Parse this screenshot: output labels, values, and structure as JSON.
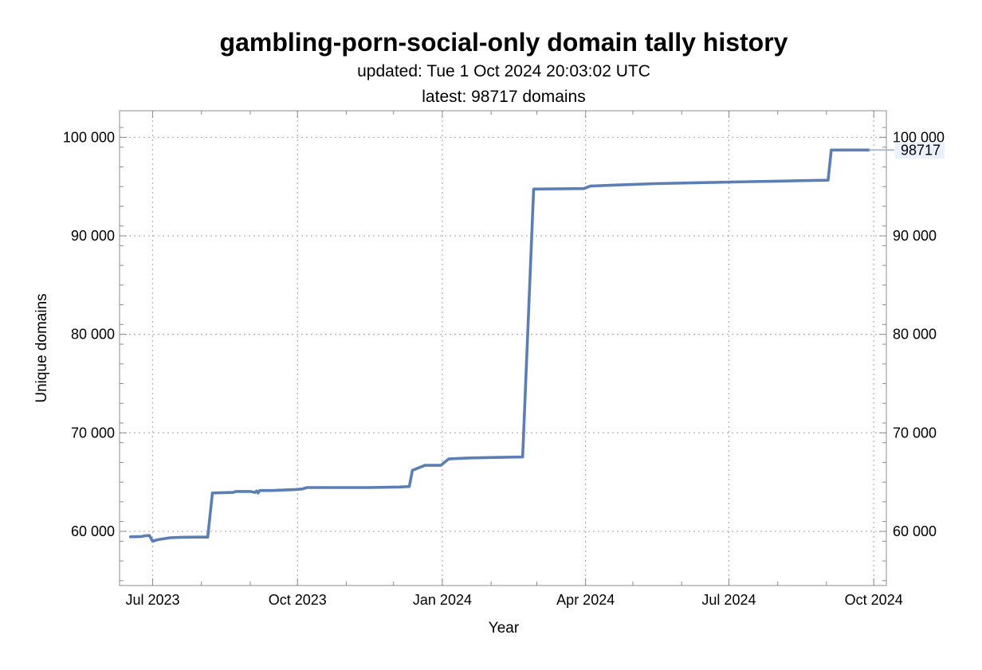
{
  "chart_data": {
    "type": "line",
    "title": "gambling-porn-social-only domain tally history",
    "subtitle_lines": [
      "updated: Tue 1 Oct 2024 20:03:02 UTC",
      "latest: 98717 domains"
    ],
    "xlabel": "Year",
    "ylabel": "Unique domains",
    "xlim": [
      "2023-06-10",
      "2024-10-09"
    ],
    "ylim": [
      54500,
      102700
    ],
    "x_ticks": [
      {
        "date": "2023-07-01",
        "label": "Jul 2023"
      },
      {
        "date": "2023-10-01",
        "label": "Oct 2023"
      },
      {
        "date": "2024-01-01",
        "label": "Jan 2024"
      },
      {
        "date": "2024-04-01",
        "label": "Apr 2024"
      },
      {
        "date": "2024-07-01",
        "label": "Jul 2024"
      },
      {
        "date": "2024-10-01",
        "label": "Oct 2024"
      }
    ],
    "x_minor_ticks": [
      "2023-06-01",
      "2023-08-01",
      "2023-09-01",
      "2023-11-01",
      "2023-12-01",
      "2024-02-01",
      "2024-03-01",
      "2024-05-01",
      "2024-06-01",
      "2024-08-01",
      "2024-09-01"
    ],
    "y_ticks": [
      {
        "value": 60000,
        "label": "60 000"
      },
      {
        "value": 70000,
        "label": "70 000"
      },
      {
        "value": 80000,
        "label": "80 000"
      },
      {
        "value": 90000,
        "label": "90 000"
      },
      {
        "value": 100000,
        "label": "100 000"
      }
    ],
    "grid": true,
    "series": [
      {
        "color": "#5b7fb5",
        "points": [
          [
            "2023-06-17",
            59450
          ],
          [
            "2023-06-24",
            59480
          ],
          [
            "2023-06-26",
            59550
          ],
          [
            "2023-06-29",
            59580
          ],
          [
            "2023-07-01",
            59000
          ],
          [
            "2023-07-04",
            59150
          ],
          [
            "2023-07-12",
            59350
          ],
          [
            "2023-07-19",
            59400
          ],
          [
            "2023-07-30",
            59420
          ],
          [
            "2023-08-05",
            59420
          ],
          [
            "2023-08-08",
            63900
          ],
          [
            "2023-08-21",
            63950
          ],
          [
            "2023-08-23",
            64050
          ],
          [
            "2023-09-01",
            64050
          ],
          [
            "2023-09-04",
            63950
          ],
          [
            "2023-09-05",
            64100
          ],
          [
            "2023-09-06",
            63900
          ],
          [
            "2023-09-07",
            64150
          ],
          [
            "2023-09-15",
            64150
          ],
          [
            "2023-09-30",
            64250
          ],
          [
            "2023-10-04",
            64300
          ],
          [
            "2023-10-07",
            64450
          ],
          [
            "2023-11-15",
            64450
          ],
          [
            "2023-12-05",
            64500
          ],
          [
            "2023-12-11",
            64550
          ],
          [
            "2023-12-13",
            66200
          ],
          [
            "2023-12-21",
            66700
          ],
          [
            "2023-12-31",
            66700
          ],
          [
            "2024-01-05",
            67350
          ],
          [
            "2024-01-17",
            67450
          ],
          [
            "2024-01-31",
            67500
          ],
          [
            "2024-02-21",
            67550
          ],
          [
            "2024-02-28",
            94750
          ],
          [
            "2024-03-31",
            94800
          ],
          [
            "2024-04-04",
            95050
          ],
          [
            "2024-04-18",
            95150
          ],
          [
            "2024-05-15",
            95300
          ],
          [
            "2024-07-01",
            95450
          ],
          [
            "2024-07-15",
            95500
          ],
          [
            "2024-08-01",
            95550
          ],
          [
            "2024-08-15",
            95600
          ],
          [
            "2024-09-02",
            95650
          ],
          [
            "2024-09-04",
            98717
          ],
          [
            "2024-09-28",
            98717
          ]
        ]
      }
    ],
    "latest_label": "98717"
  }
}
